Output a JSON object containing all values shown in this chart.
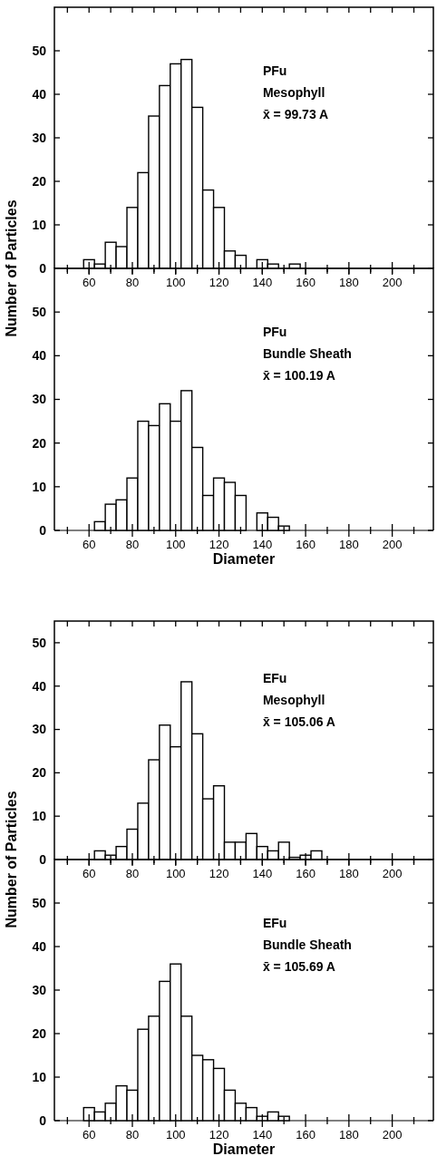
{
  "chart_data": [
    {
      "type": "histogram",
      "ylabel": "Number of Particles",
      "color": "#ffffff",
      "bins": [
        57.5,
        62.5,
        67.5,
        72.5,
        77.5,
        82.5,
        87.5,
        92.5,
        97.5,
        102.5,
        107.5,
        112.5,
        117.5,
        122.5,
        127.5,
        132.5,
        137.5,
        142.5,
        147.5,
        152.5,
        157.5
      ],
      "values": [
        2,
        1,
        6,
        5,
        14,
        22,
        35,
        42,
        47,
        48,
        37,
        18,
        14,
        4,
        3,
        0,
        2,
        1,
        0,
        1
      ],
      "xlim": [
        44,
        219
      ],
      "ylim": [
        0,
        60
      ],
      "yticks": [
        0,
        10,
        20,
        30,
        40,
        50
      ],
      "xticks": [
        {
          "value": 50,
          "label": null
        },
        60,
        {
          "value": 70,
          "label": null
        },
        80,
        {
          "value": 90,
          "label": null
        },
        100,
        {
          "value": 110,
          "label": null
        },
        120,
        {
          "value": 130,
          "label": null
        },
        140,
        {
          "value": 150,
          "label": null
        },
        160,
        {
          "value": 170,
          "label": null
        },
        180,
        {
          "value": 190,
          "label": null
        },
        200,
        {
          "value": 210,
          "label": null
        }
      ],
      "annotations": [
        "PFu",
        "Mesophyll",
        "x̄ = 99.73 A"
      ]
    },
    {
      "type": "histogram",
      "xlabel": "Diameter",
      "color": "#ffffff",
      "bins": [
        62.5,
        67.5,
        72.5,
        77.5,
        82.5,
        87.5,
        92.5,
        97.5,
        102.5,
        107.5,
        112.5,
        117.5,
        122.5,
        127.5,
        132.5,
        137.5,
        142.5,
        147.5,
        152.5
      ],
      "values": [
        2,
        6,
        7,
        12,
        25,
        24,
        29,
        25,
        32,
        19,
        8,
        12,
        11,
        8,
        0,
        4,
        3,
        1
      ],
      "xlim": [
        44,
        219
      ],
      "ylim": [
        0,
        60
      ],
      "yticks": [
        0,
        10,
        20,
        30,
        40,
        50
      ],
      "xticks": [
        {
          "value": 50,
          "label": null
        },
        60,
        {
          "value": 70,
          "label": null
        },
        80,
        {
          "value": 90,
          "label": null
        },
        100,
        {
          "value": 110,
          "label": null
        },
        120,
        {
          "value": 130,
          "label": null
        },
        140,
        {
          "value": 150,
          "label": null
        },
        160,
        {
          "value": 170,
          "label": null
        },
        180,
        {
          "value": 190,
          "label": null
        },
        200,
        {
          "value": 210,
          "label": null
        }
      ],
      "annotations": [
        "PFu",
        "Bundle Sheath",
        "x̄ = 100.19 A"
      ]
    },
    {
      "type": "histogram",
      "ylabel": "Number of Particles",
      "color": "#ffffff",
      "bins": [
        62.5,
        67.5,
        72.5,
        77.5,
        82.5,
        87.5,
        92.5,
        97.5,
        102.5,
        107.5,
        112.5,
        117.5,
        122.5,
        127.5,
        132.5,
        137.5,
        142.5,
        147.5,
        152.5,
        157.5,
        162.5,
        167.5
      ],
      "values": [
        2,
        1,
        3,
        7,
        13,
        23,
        31,
        26,
        41,
        29,
        14,
        17,
        4,
        4,
        6,
        3,
        2,
        4,
        0.5,
        1,
        2
      ],
      "xlim": [
        44,
        219
      ],
      "ylim": [
        0,
        55
      ],
      "yticks": [
        0,
        10,
        20,
        30,
        40,
        50
      ],
      "xticks": [
        {
          "value": 50,
          "label": null
        },
        60,
        {
          "value": 70,
          "label": null
        },
        80,
        {
          "value": 90,
          "label": null
        },
        100,
        {
          "value": 110,
          "label": null
        },
        120,
        {
          "value": 130,
          "label": null
        },
        140,
        {
          "value": 150,
          "label": null
        },
        160,
        {
          "value": 170,
          "label": null
        },
        180,
        {
          "value": 190,
          "label": null
        },
        200,
        {
          "value": 210,
          "label": null
        }
      ],
      "annotations": [
        "EFu",
        "Mesophyll",
        "x̄ = 105.06 A"
      ]
    },
    {
      "type": "histogram",
      "xlabel": "Diameter",
      "color": "#ffffff",
      "bins": [
        57.5,
        62.5,
        67.5,
        72.5,
        77.5,
        82.5,
        87.5,
        92.5,
        97.5,
        102.5,
        107.5,
        112.5,
        117.5,
        122.5,
        127.5,
        132.5,
        137.5,
        142.5,
        147.5,
        152.5
      ],
      "values": [
        3,
        2,
        4,
        8,
        7,
        21,
        24,
        32,
        36,
        24,
        15,
        14,
        12,
        7,
        4,
        3,
        1,
        2,
        1
      ],
      "xlim": [
        44,
        219
      ],
      "ylim": [
        0,
        60
      ],
      "yticks": [
        0,
        10,
        20,
        30,
        40,
        50
      ],
      "xticks": [
        {
          "value": 50,
          "label": null
        },
        60,
        {
          "value": 70,
          "label": null
        },
        80,
        {
          "value": 90,
          "label": null
        },
        100,
        {
          "value": 110,
          "label": null
        },
        120,
        {
          "value": 130,
          "label": null
        },
        140,
        {
          "value": 150,
          "label": null
        },
        160,
        {
          "value": 170,
          "label": null
        },
        180,
        {
          "value": 190,
          "label": null
        },
        200,
        {
          "value": 210,
          "label": null
        }
      ],
      "annotations": [
        "EFu",
        "Bundle Sheath",
        "x̄ = 105.69 A"
      ]
    }
  ]
}
